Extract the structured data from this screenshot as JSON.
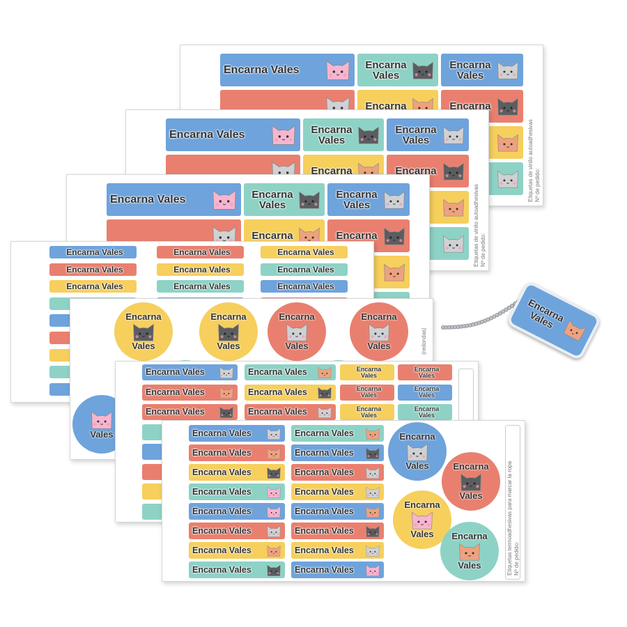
{
  "name": {
    "full": "Encarna Vales",
    "first": "Encarna",
    "last": "Vales"
  },
  "colors": {
    "b": "#6fa3dc",
    "t": "#8ed2c6",
    "r": "#e9806f",
    "y": "#f6cf5d"
  },
  "cat_colors": {
    "pink": "#f7b5cf",
    "dark": "#5b5d60",
    "light": "#cfd1d3",
    "orange": "#eea27c"
  },
  "sheet_texts": {
    "vinyl": "Etiquetas de vinilo autoadhesivas",
    "order": "Nº de pedido:",
    "round": "(redondas)",
    "thermo": "Etiquetas termoadhesivas para marcar la ropa"
  },
  "vinyl_sheet_labels": [
    [
      [
        "b",
        "pink"
      ],
      [
        "t",
        "dark"
      ],
      [
        "b",
        "light"
      ]
    ],
    [
      [
        "r",
        "light"
      ],
      [
        "y",
        "orange"
      ],
      [
        "r",
        "dark"
      ]
    ],
    [
      [
        "t",
        "dark"
      ],
      [
        "b",
        "light"
      ],
      [
        "y",
        "orange"
      ]
    ],
    [
      [
        "y",
        "orange"
      ],
      [
        "r",
        "dark"
      ],
      [
        "t",
        "light"
      ]
    ]
  ],
  "small_sheet_columns": [
    [
      "b",
      "r",
      "y",
      "t",
      "b",
      "r",
      "y",
      "t",
      "b"
    ],
    [
      "r",
      "y",
      "t",
      "b",
      "r",
      "y",
      "t",
      "b",
      "r"
    ],
    [
      "y",
      "t",
      "b",
      "r",
      "y",
      "t",
      "b",
      "r",
      "y"
    ]
  ],
  "round_sheet_circles": [
    [
      "y",
      "dark"
    ],
    [
      "y",
      "dark"
    ],
    [
      "r",
      "light"
    ],
    [
      "r",
      "light"
    ],
    [
      "b",
      "pink"
    ],
    [
      "t",
      "orange"
    ],
    [
      "t",
      "orange"
    ],
    [
      "b",
      "pink"
    ]
  ],
  "thermo_sheet_a": {
    "col1": [
      [
        "b",
        "light"
      ],
      [
        "r",
        "orange"
      ],
      [
        "r",
        "dark"
      ],
      [
        "t",
        "pink"
      ],
      [
        "b",
        "light"
      ],
      [
        "r",
        "orange"
      ],
      [
        "y",
        "dark"
      ],
      [
        "t",
        "light"
      ]
    ],
    "col2": [
      [
        "t",
        "orange"
      ],
      [
        "y",
        "dark"
      ],
      [
        "r",
        "light"
      ],
      [
        "b",
        "pink"
      ],
      [
        "t",
        "orange"
      ],
      [
        "y",
        "dark"
      ],
      [
        "r",
        "light"
      ],
      [
        "b",
        "pink"
      ]
    ],
    "small1": [
      "y",
      "r",
      "y",
      "b",
      "t",
      "b",
      "y",
      "r"
    ],
    "small2": [
      "r",
      "b",
      "t",
      "y",
      "t",
      "r",
      "b",
      "y"
    ]
  },
  "thermo_sheet_b": {
    "col1": [
      [
        "b",
        "light"
      ],
      [
        "r",
        "orange"
      ],
      [
        "y",
        "dark"
      ],
      [
        "t",
        "pink"
      ],
      [
        "b",
        "pink"
      ],
      [
        "r",
        "light"
      ],
      [
        "y",
        "orange"
      ],
      [
        "t",
        "dark"
      ]
    ],
    "col2": [
      [
        "t",
        "orange"
      ],
      [
        "b",
        "dark"
      ],
      [
        "r",
        "light"
      ],
      [
        "y",
        "light"
      ],
      [
        "b",
        "orange"
      ],
      [
        "r",
        "dark"
      ],
      [
        "y",
        "light"
      ],
      [
        "b",
        "pink"
      ]
    ],
    "circles": [
      [
        "b",
        "light"
      ],
      [
        "r",
        "dark"
      ],
      [
        "y",
        "pink"
      ],
      [
        "t",
        "orange"
      ]
    ]
  },
  "tag": {
    "color": "b",
    "cat": "orange"
  }
}
